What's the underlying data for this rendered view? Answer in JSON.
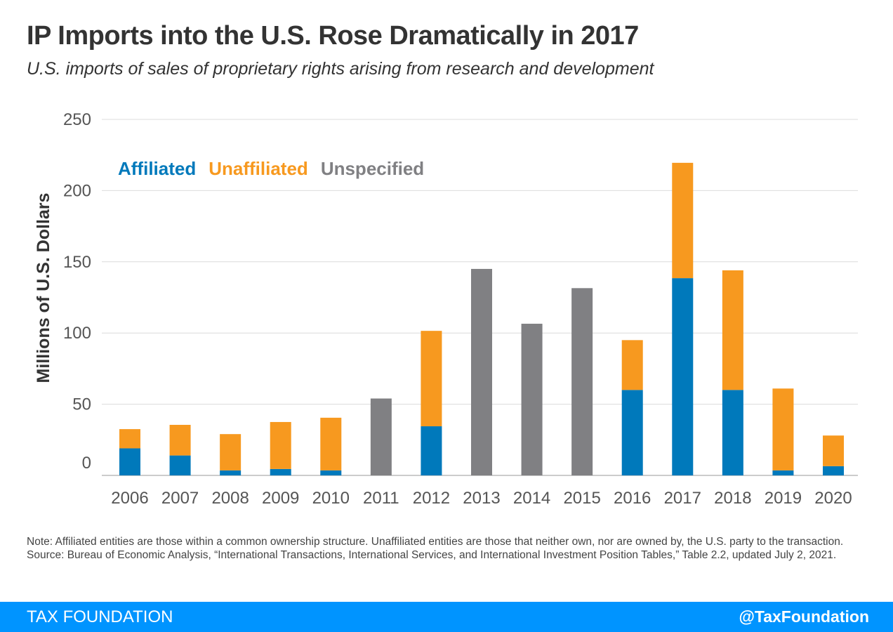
{
  "title": "IP Imports into the U.S. Rose Dramatically in 2017",
  "subtitle": "U.S. imports of sales of proprietary rights arising from research and development",
  "note": "Note: Affiliated entities are those within a common ownership structure. Unaffiliated entities are those that neither own, nor are owned by, the U.S. party to the transaction.",
  "source": "Source: Bureau of Economic Analysis, “International Transactions, International Services, and International Investment Position Tables,” Table 2.2, updated July 2, 2021.",
  "footer": {
    "brand": "TAX FOUNDATION",
    "handle": "@TaxFoundation"
  },
  "chart_data": {
    "type": "bar",
    "stacked": true,
    "ylabel": "Millions of U.S. Dollars",
    "ylim": [
      0,
      250
    ],
    "yticks": [
      0,
      50,
      100,
      150,
      200,
      250
    ],
    "grid": true,
    "legend_position": "top-left",
    "categories": [
      "2006",
      "2007",
      "2008",
      "2009",
      "2010",
      "2011",
      "2012",
      "2013",
      "2014",
      "2015",
      "2016",
      "2017",
      "2018",
      "2019",
      "2020"
    ],
    "series": [
      {
        "name": "Affiliated",
        "color": "#0079bb",
        "values": [
          19,
          14,
          3.5,
          4.5,
          3.5,
          0,
          34.5,
          0,
          0,
          0,
          60,
          138.5,
          60,
          3.5,
          6.5
        ]
      },
      {
        "name": "Unaffiliated",
        "color": "#f7991f",
        "values": [
          13.5,
          21.5,
          25.5,
          33,
          37,
          0,
          67,
          0,
          0,
          0,
          35,
          81,
          84,
          57.5,
          21.5
        ]
      },
      {
        "name": "Unspecified",
        "color": "#808083",
        "values": [
          0,
          0,
          0,
          0,
          0,
          54,
          0,
          145,
          106.5,
          131.5,
          0,
          0,
          0,
          0,
          0
        ]
      }
    ]
  }
}
